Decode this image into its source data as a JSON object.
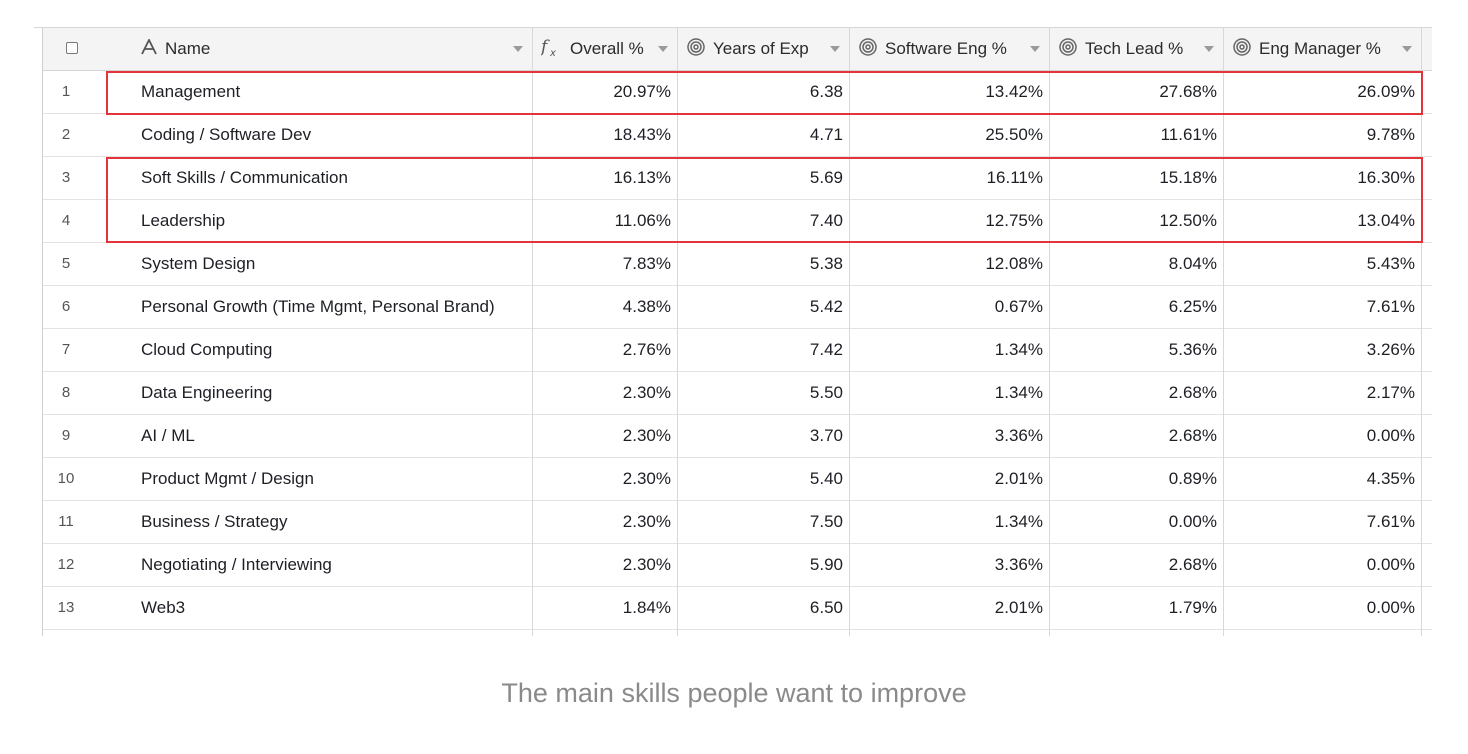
{
  "table": {
    "columns": [
      {
        "label": "Name",
        "icon": "text-type-icon"
      },
      {
        "label": "Overall %",
        "icon": "formula-icon"
      },
      {
        "label": "Years of Exp",
        "icon": "rollup-icon"
      },
      {
        "label": "Software Eng %",
        "icon": "rollup-icon"
      },
      {
        "label": "Tech Lead %",
        "icon": "rollup-icon"
      },
      {
        "label": "Eng Manager %",
        "icon": "rollup-icon"
      }
    ],
    "rows": [
      {
        "num": "1",
        "name": "Management",
        "overall": "20.97%",
        "years": "6.38",
        "swe": "13.42%",
        "lead": "27.68%",
        "mgr": "26.09%"
      },
      {
        "num": "2",
        "name": "Coding / Software Dev",
        "overall": "18.43%",
        "years": "4.71",
        "swe": "25.50%",
        "lead": "11.61%",
        "mgr": "9.78%"
      },
      {
        "num": "3",
        "name": "Soft Skills / Communication",
        "overall": "16.13%",
        "years": "5.69",
        "swe": "16.11%",
        "lead": "15.18%",
        "mgr": "16.30%"
      },
      {
        "num": "4",
        "name": "Leadership",
        "overall": "11.06%",
        "years": "7.40",
        "swe": "12.75%",
        "lead": "12.50%",
        "mgr": "13.04%"
      },
      {
        "num": "5",
        "name": "System Design",
        "overall": "7.83%",
        "years": "5.38",
        "swe": "12.08%",
        "lead": "8.04%",
        "mgr": "5.43%"
      },
      {
        "num": "6",
        "name": "Personal Growth (Time Mgmt, Personal Brand)",
        "overall": "4.38%",
        "years": "5.42",
        "swe": "0.67%",
        "lead": "6.25%",
        "mgr": "7.61%"
      },
      {
        "num": "7",
        "name": "Cloud Computing",
        "overall": "2.76%",
        "years": "7.42",
        "swe": "1.34%",
        "lead": "5.36%",
        "mgr": "3.26%"
      },
      {
        "num": "8",
        "name": "Data Engineering",
        "overall": "2.30%",
        "years": "5.50",
        "swe": "1.34%",
        "lead": "2.68%",
        "mgr": "2.17%"
      },
      {
        "num": "9",
        "name": "AI / ML",
        "overall": "2.30%",
        "years": "3.70",
        "swe": "3.36%",
        "lead": "2.68%",
        "mgr": "0.00%"
      },
      {
        "num": "10",
        "name": "Product Mgmt / Design",
        "overall": "2.30%",
        "years": "5.40",
        "swe": "2.01%",
        "lead": "0.89%",
        "mgr": "4.35%"
      },
      {
        "num": "11",
        "name": "Business / Strategy",
        "overall": "2.30%",
        "years": "7.50",
        "swe": "1.34%",
        "lead": "0.00%",
        "mgr": "7.61%"
      },
      {
        "num": "12",
        "name": "Negotiating / Interviewing",
        "overall": "2.30%",
        "years": "5.90",
        "swe": "3.36%",
        "lead": "2.68%",
        "mgr": "0.00%"
      },
      {
        "num": "13",
        "name": "Web3",
        "overall": "1.84%",
        "years": "6.50",
        "swe": "2.01%",
        "lead": "1.79%",
        "mgr": "0.00%"
      }
    ]
  },
  "highlight_color": "#e3343b",
  "caption": "The main skills people want to improve"
}
